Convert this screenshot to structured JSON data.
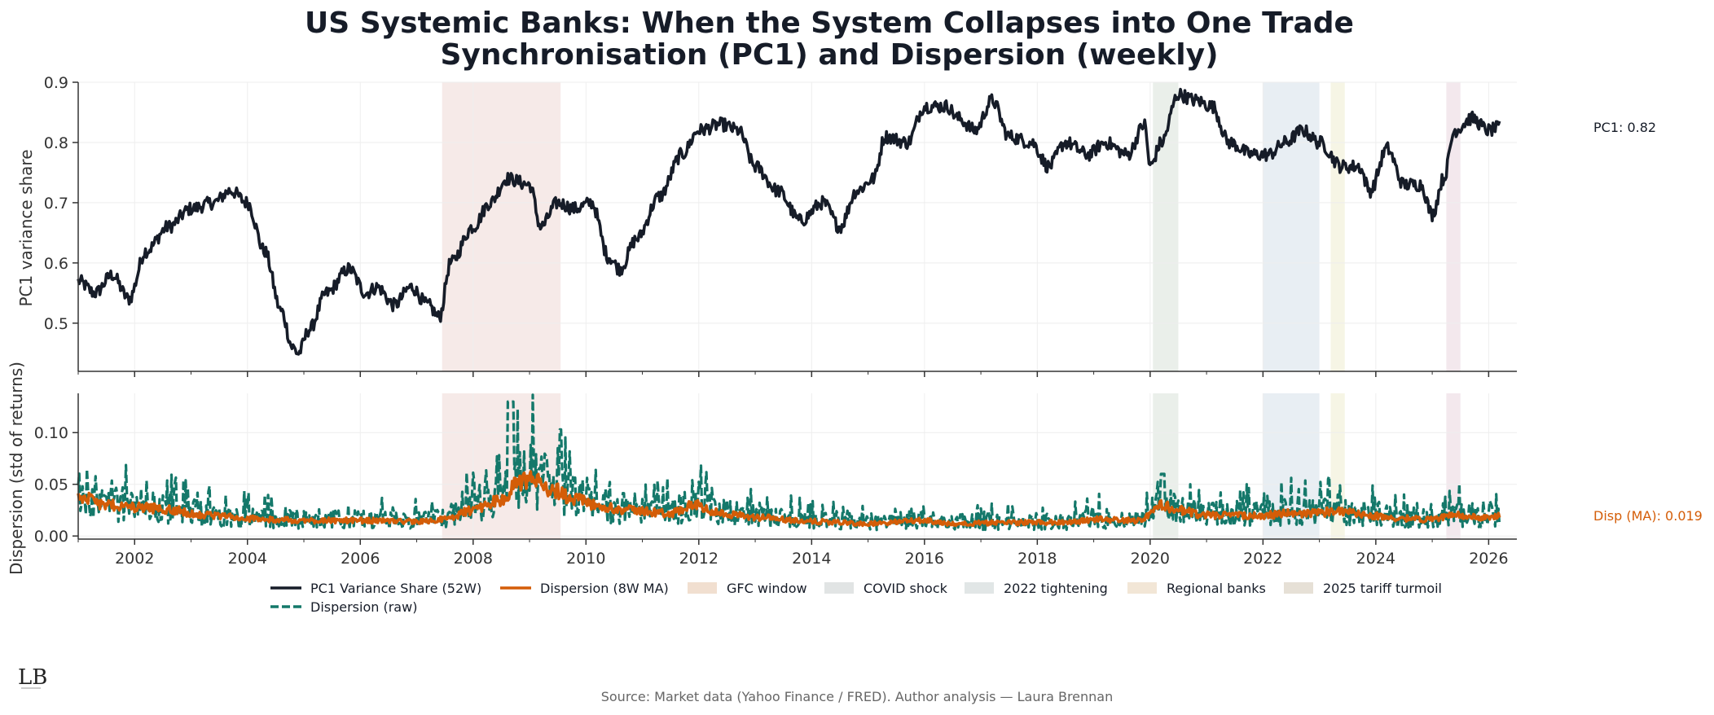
{
  "chart_data": [
    {
      "type": "line",
      "title": "US Systemic Banks: When the System Collapses into One Trade",
      "subtitle": "Synchronisation (PC1) and Dispersion (weekly)",
      "ylabel": "PC1 variance share",
      "xlim": [
        2001.0,
        2026.5
      ],
      "ylim": [
        0.42,
        0.9
      ],
      "yticks": [
        0.5,
        0.6,
        0.7,
        0.8,
        0.9
      ],
      "ytick_labels": [
        "0.5",
        "0.6",
        "0.7",
        "0.8",
        "0.9"
      ],
      "series": [
        {
          "name": "PC1 Variance Share (52W)",
          "color": "#161c28",
          "anchors": [
            [
              2001.0,
              0.57
            ],
            [
              2001.3,
              0.55
            ],
            [
              2001.6,
              0.58
            ],
            [
              2001.9,
              0.54
            ],
            [
              2002.2,
              0.62
            ],
            [
              2002.6,
              0.66
            ],
            [
              2003.0,
              0.69
            ],
            [
              2003.4,
              0.7
            ],
            [
              2003.7,
              0.72
            ],
            [
              2004.0,
              0.7
            ],
            [
              2004.3,
              0.62
            ],
            [
              2004.6,
              0.52
            ],
            [
              2004.8,
              0.46
            ],
            [
              2004.9,
              0.45
            ],
            [
              2005.1,
              0.49
            ],
            [
              2005.4,
              0.55
            ],
            [
              2005.8,
              0.59
            ],
            [
              2006.1,
              0.55
            ],
            [
              2006.3,
              0.56
            ],
            [
              2006.6,
              0.53
            ],
            [
              2006.9,
              0.56
            ],
            [
              2007.2,
              0.53
            ],
            [
              2007.4,
              0.51
            ],
            [
              2007.6,
              0.6
            ],
            [
              2008.0,
              0.66
            ],
            [
              2008.3,
              0.7
            ],
            [
              2008.6,
              0.74
            ],
            [
              2009.0,
              0.73
            ],
            [
              2009.2,
              0.66
            ],
            [
              2009.5,
              0.7
            ],
            [
              2009.8,
              0.69
            ],
            [
              2010.1,
              0.7
            ],
            [
              2010.4,
              0.61
            ],
            [
              2010.6,
              0.59
            ],
            [
              2010.9,
              0.64
            ],
            [
              2011.3,
              0.71
            ],
            [
              2011.7,
              0.78
            ],
            [
              2012.0,
              0.82
            ],
            [
              2012.4,
              0.83
            ],
            [
              2012.7,
              0.82
            ],
            [
              2013.0,
              0.76
            ],
            [
              2013.4,
              0.72
            ],
            [
              2013.8,
              0.67
            ],
            [
              2014.2,
              0.7
            ],
            [
              2014.5,
              0.66
            ],
            [
              2014.8,
              0.72
            ],
            [
              2015.1,
              0.74
            ],
            [
              2015.3,
              0.81
            ],
            [
              2015.7,
              0.8
            ],
            [
              2016.0,
              0.86
            ],
            [
              2016.4,
              0.86
            ],
            [
              2016.6,
              0.84
            ],
            [
              2016.9,
              0.82
            ],
            [
              2017.2,
              0.87
            ],
            [
              2017.5,
              0.81
            ],
            [
              2017.9,
              0.8
            ],
            [
              2018.2,
              0.76
            ],
            [
              2018.5,
              0.8
            ],
            [
              2018.9,
              0.78
            ],
            [
              2019.2,
              0.8
            ],
            [
              2019.6,
              0.78
            ],
            [
              2019.9,
              0.83
            ],
            [
              2020.0,
              0.76
            ],
            [
              2020.2,
              0.8
            ],
            [
              2020.5,
              0.88
            ],
            [
              2020.8,
              0.87
            ],
            [
              2021.1,
              0.86
            ],
            [
              2021.4,
              0.8
            ],
            [
              2021.8,
              0.78
            ],
            [
              2022.1,
              0.78
            ],
            [
              2022.4,
              0.8
            ],
            [
              2022.7,
              0.82
            ],
            [
              2023.0,
              0.8
            ],
            [
              2023.4,
              0.76
            ],
            [
              2023.7,
              0.76
            ],
            [
              2023.9,
              0.72
            ],
            [
              2024.2,
              0.79
            ],
            [
              2024.5,
              0.73
            ],
            [
              2024.8,
              0.73
            ],
            [
              2025.0,
              0.68
            ],
            [
              2025.2,
              0.74
            ],
            [
              2025.4,
              0.82
            ],
            [
              2025.7,
              0.84
            ],
            [
              2026.0,
              0.82
            ],
            [
              2026.2,
              0.825
            ]
          ]
        }
      ],
      "shaded_windows": [
        {
          "name": "GFC window",
          "start": 2007.45,
          "end": 2009.55,
          "color": "#f4e6e4"
        },
        {
          "name": "COVID shock",
          "start": 2020.05,
          "end": 2020.5,
          "color": "#e6ece6"
        },
        {
          "name": "2022 tightening",
          "start": 2022.0,
          "end": 2023.0,
          "color": "#e4ebf1"
        },
        {
          "name": "Regional banks",
          "start": 2023.2,
          "end": 2023.45,
          "color": "#f5f3e0"
        },
        {
          "name": "2025 tariff turmoil",
          "start": 2025.25,
          "end": 2025.5,
          "color": "#f1e4ea"
        }
      ],
      "annotation": "PC1: 0.82"
    },
    {
      "type": "line",
      "ylabel": "Dispersion (std of returns)",
      "xlabel": "",
      "xlim": [
        2001.0,
        2026.5
      ],
      "ylim": [
        -0.003,
        0.138
      ],
      "xticks": [
        2002,
        2004,
        2006,
        2008,
        2010,
        2012,
        2014,
        2016,
        2018,
        2020,
        2022,
        2024,
        2026
      ],
      "xtick_labels": [
        "2002",
        "2004",
        "2006",
        "2008",
        "2010",
        "2012",
        "2014",
        "2016",
        "2018",
        "2020",
        "2022",
        "2024",
        "2026"
      ],
      "yticks": [
        0.0,
        0.05,
        0.1
      ],
      "ytick_labels": [
        "0.00",
        "0.05",
        "0.10"
      ],
      "series": [
        {
          "name": "Dispersion (raw)",
          "color": "#14786a",
          "style": "dashed",
          "note": "weekly noisy series around the moving average, spikes to 0.13 in late 2008"
        },
        {
          "name": "Dispersion (8W MA)",
          "color": "#d45d08",
          "anchors": [
            [
              2001.0,
              0.038
            ],
            [
              2001.5,
              0.03
            ],
            [
              2002.0,
              0.028
            ],
            [
              2002.6,
              0.026
            ],
            [
              2003.0,
              0.022
            ],
            [
              2003.5,
              0.019
            ],
            [
              2004.0,
              0.017
            ],
            [
              2005.0,
              0.015
            ],
            [
              2006.0,
              0.015
            ],
            [
              2007.0,
              0.014
            ],
            [
              2007.5,
              0.016
            ],
            [
              2008.0,
              0.025
            ],
            [
              2008.5,
              0.035
            ],
            [
              2008.8,
              0.05
            ],
            [
              2009.0,
              0.055
            ],
            [
              2009.4,
              0.045
            ],
            [
              2009.8,
              0.035
            ],
            [
              2010.3,
              0.028
            ],
            [
              2010.8,
              0.025
            ],
            [
              2011.5,
              0.022
            ],
            [
              2011.9,
              0.03
            ],
            [
              2012.4,
              0.022
            ],
            [
              2013.0,
              0.018
            ],
            [
              2014.0,
              0.014
            ],
            [
              2015.0,
              0.012
            ],
            [
              2016.0,
              0.015
            ],
            [
              2016.5,
              0.012
            ],
            [
              2017.5,
              0.013
            ],
            [
              2018.5,
              0.013
            ],
            [
              2019.0,
              0.016
            ],
            [
              2019.8,
              0.015
            ],
            [
              2020.2,
              0.03
            ],
            [
              2020.5,
              0.025
            ],
            [
              2021.0,
              0.02
            ],
            [
              2022.0,
              0.02
            ],
            [
              2022.5,
              0.022
            ],
            [
              2023.0,
              0.022
            ],
            [
              2023.3,
              0.025
            ],
            [
              2023.8,
              0.02
            ],
            [
              2024.5,
              0.017
            ],
            [
              2025.0,
              0.016
            ],
            [
              2025.4,
              0.02
            ],
            [
              2026.0,
              0.017
            ],
            [
              2026.2,
              0.019
            ]
          ]
        }
      ],
      "annotation": "Disp (MA): 0.019"
    }
  ],
  "legend": [
    {
      "label": "PC1 Variance Share (52W)",
      "kind": "line",
      "color": "#161c28"
    },
    {
      "label": "Dispersion (8W MA)",
      "kind": "line",
      "color": "#d45d08"
    },
    {
      "label": "GFC window",
      "kind": "patch",
      "color": "#f1dfd0"
    },
    {
      "label": "COVID shock",
      "kind": "patch",
      "color": "#e1e4e4"
    },
    {
      "label": "2022 tightening",
      "kind": "patch",
      "color": "#e1e6e6"
    },
    {
      "label": "Regional banks",
      "kind": "patch",
      "color": "#f2e6d6"
    },
    {
      "label": "2025 tariff turmoil",
      "kind": "patch",
      "color": "#e6e0d6"
    },
    {
      "label": "Dispersion (raw)",
      "kind": "dashed",
      "color": "#14786a"
    }
  ],
  "source": "Source: Market data (Yahoo Finance / FRED). Author analysis — Laura Brennan",
  "logo": "LB",
  "colors": {
    "pc1": "#161c28",
    "ma": "#d45d08",
    "raw": "#14786a",
    "grid": "#ececec",
    "axis": "#333333"
  }
}
